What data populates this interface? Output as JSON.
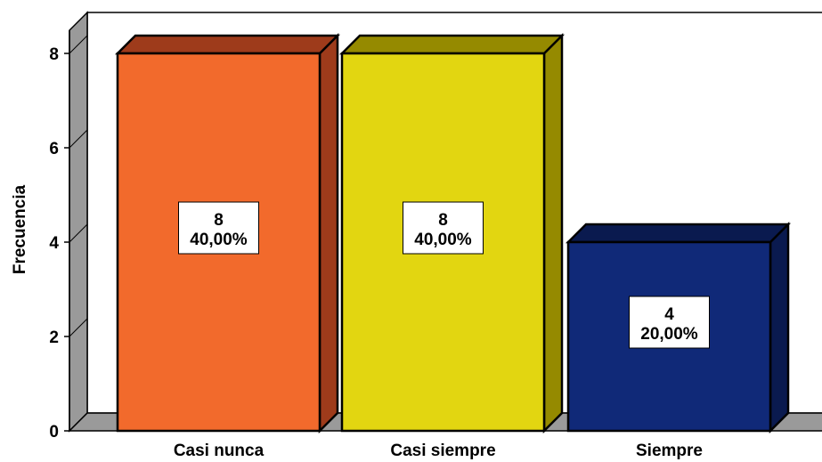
{
  "chart_data": {
    "type": "bar",
    "title": "",
    "xlabel": "",
    "ylabel": "Frecuencia",
    "ylim": [
      0,
      8.5
    ],
    "yticks": [
      0,
      2,
      4,
      6,
      8
    ],
    "grid": false,
    "legend": "none",
    "categories": [
      "Casi nunca",
      "Casi siempre",
      "Siempre"
    ],
    "values": [
      8,
      8,
      4
    ],
    "percent_labels": [
      "40,00%",
      "40,00%",
      "20,00%"
    ],
    "colors": [
      "#F26A2C",
      "#E2D611",
      "#102978"
    ],
    "side_colors": [
      "#9E3B1B",
      "#958A00",
      "#0A1A4F"
    ],
    "wall_color": "#9A9A9A"
  }
}
